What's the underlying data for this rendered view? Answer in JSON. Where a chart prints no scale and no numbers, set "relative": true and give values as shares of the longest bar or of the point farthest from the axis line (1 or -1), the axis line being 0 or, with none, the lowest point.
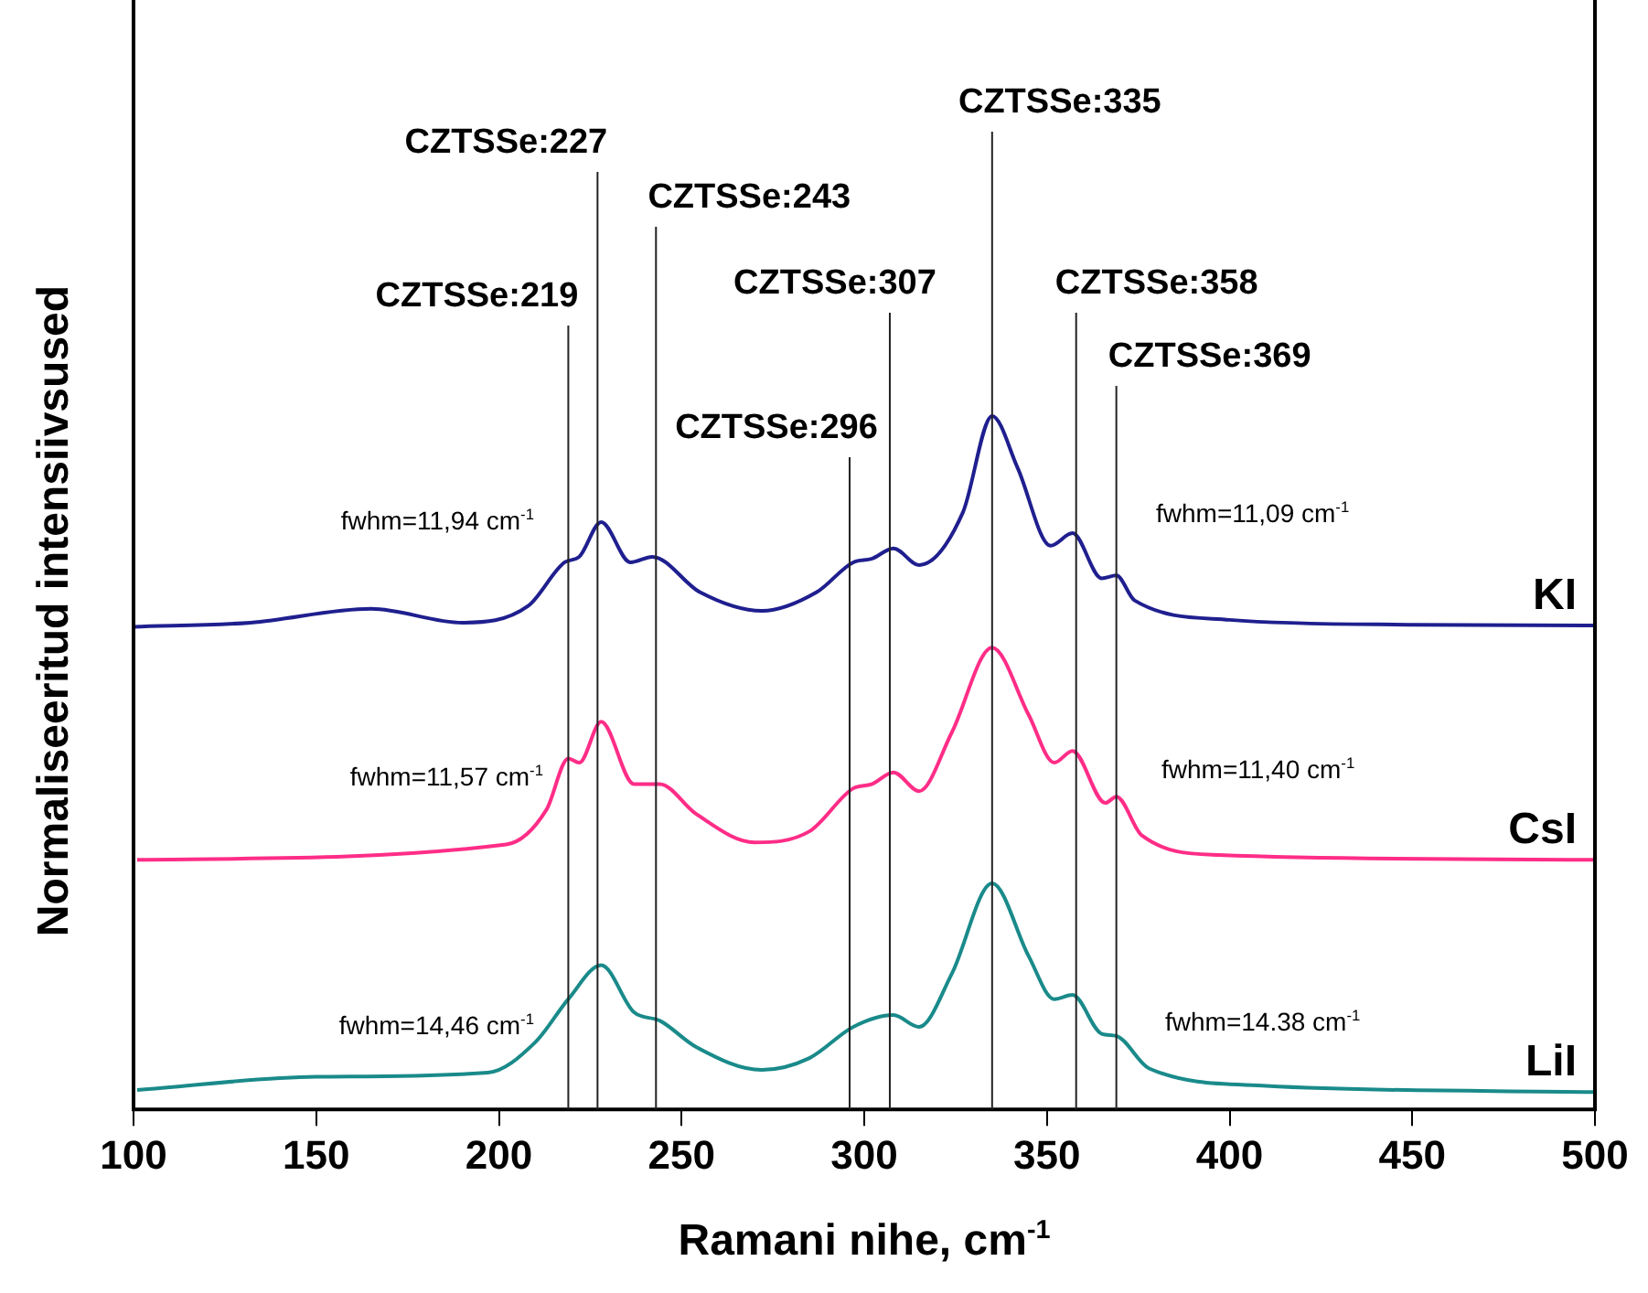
{
  "chart_data": {
    "type": "line",
    "relative": true,
    "xlabel": "Ramani nihe, cm$^{-1}$",
    "ylabel": "Normaliseeritud intensiivsused",
    "xlim": [
      100,
      500
    ],
    "xticks": [
      100,
      150,
      200,
      250,
      300,
      350,
      400,
      450,
      500
    ],
    "legend": false,
    "marker": "none",
    "line_style": "solid",
    "series": [
      {
        "name": "KI",
        "color": "#1f1f8f",
        "x": [
          100,
          132,
          165,
          190,
          208,
          218,
          222,
          228,
          236,
          242,
          255,
          272,
          287,
          297,
          302,
          308,
          315,
          327,
          335,
          342,
          351,
          357,
          365,
          369,
          374,
          400,
          450,
          500
        ],
        "values": [
          0.696,
          0.702,
          0.722,
          0.702,
          0.726,
          0.789,
          0.797,
          0.847,
          0.789,
          0.797,
          0.746,
          0.719,
          0.746,
          0.789,
          0.794,
          0.809,
          0.785,
          0.861,
          1.0,
          0.925,
          0.813,
          0.831,
          0.766,
          0.77,
          0.734,
          0.706,
          0.699,
          0.698
        ]
      },
      {
        "name": "CsI",
        "color": "#ff2d87",
        "x": [
          101,
          202,
          213,
          219,
          222,
          228,
          237,
          244,
          254,
          270,
          285,
          297,
          302,
          308,
          315,
          324,
          335,
          345,
          352,
          357,
          366,
          369,
          376,
          397,
          500
        ],
        "values": [
          0.36,
          0.382,
          0.432,
          0.506,
          0.5,
          0.559,
          0.469,
          0.469,
          0.426,
          0.385,
          0.401,
          0.463,
          0.469,
          0.486,
          0.459,
          0.544,
          0.666,
          0.569,
          0.5,
          0.517,
          0.442,
          0.451,
          0.395,
          0.367,
          0.36
        ]
      },
      {
        "name": "LiI",
        "color": "#1a8a8a",
        "x": [
          101,
          150,
          197,
          210,
          219,
          228,
          237,
          244,
          254,
          272,
          285,
          297,
          308,
          315,
          324,
          335,
          345,
          352,
          357,
          365,
          369,
          378,
          410,
          500
        ],
        "values": [
          0.028,
          0.047,
          0.053,
          0.097,
          0.159,
          0.208,
          0.14,
          0.128,
          0.09,
          0.057,
          0.074,
          0.119,
          0.136,
          0.119,
          0.196,
          0.326,
          0.221,
          0.159,
          0.165,
          0.109,
          0.106,
          0.059,
          0.034,
          0.025
        ]
      }
    ],
    "ref_lines": [
      {
        "axis": "x",
        "value": 219,
        "label": "CZTSSe:219"
      },
      {
        "axis": "x",
        "value": 227,
        "label": "CZTSSe:227"
      },
      {
        "axis": "x",
        "value": 243,
        "label": "CZTSSe:243"
      },
      {
        "axis": "x",
        "value": 296,
        "label": "CZTSSe:296"
      },
      {
        "axis": "x",
        "value": 307,
        "label": "CZTSSe:307"
      },
      {
        "axis": "x",
        "value": 335,
        "label": "CZTSSe:335"
      },
      {
        "axis": "x",
        "value": 358,
        "label": "CZTSSe:358"
      },
      {
        "axis": "x",
        "value": 369,
        "label": "CZTSSe:369"
      }
    ],
    "annotations": [
      "fwhm=11,94 cm$^{-1}$",
      "fwhm=11,09 cm$^{-1}$",
      "fwhm=11,57 cm$^{-1}$",
      "fwhm=11,40 cm$^{-1}$",
      "fwhm=14,46 cm$^{-1}$",
      "fwhm=14.38 cm$^{-1}$"
    ]
  }
}
